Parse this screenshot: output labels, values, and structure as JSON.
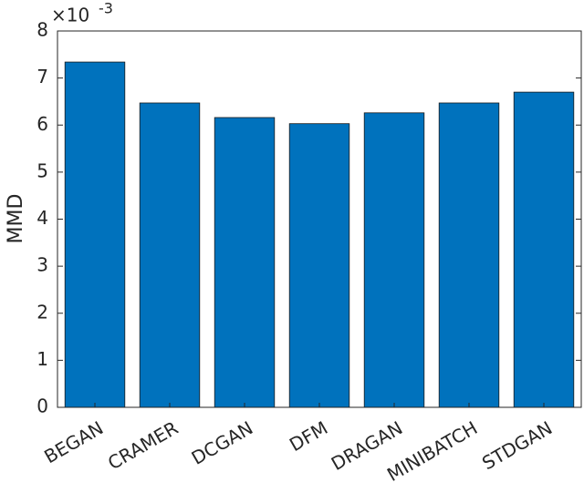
{
  "chart_data": {
    "type": "bar",
    "ylabel": "MMD",
    "y_multiplier": {
      "base": "×10",
      "exponent": "-3"
    },
    "categories": [
      "BEGAN",
      "CRAMER",
      "DCGAN",
      "DFM",
      "DRAGAN",
      "MINIBATCH",
      "STDGAN"
    ],
    "values": [
      7.34,
      6.47,
      6.16,
      6.03,
      6.26,
      6.47,
      6.7
    ],
    "color": "#0072bd",
    "ylim": [
      0,
      8
    ],
    "yticks": [
      0,
      1,
      2,
      3,
      4,
      5,
      6,
      7,
      8
    ],
    "grid": false
  }
}
